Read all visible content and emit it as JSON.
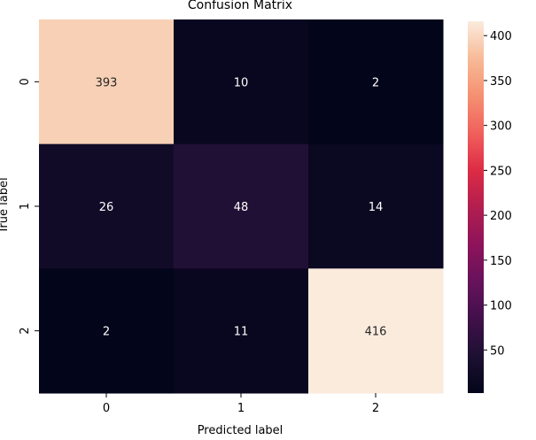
{
  "chart_data": {
    "type": "heatmap",
    "title": "Confusion Matrix",
    "xlabel": "Predicted label",
    "ylabel": "True label",
    "x_categories": [
      "0",
      "1",
      "2"
    ],
    "y_categories": [
      "0",
      "1",
      "2"
    ],
    "values": [
      [
        393,
        10,
        2
      ],
      [
        26,
        48,
        14
      ],
      [
        2,
        11,
        416
      ]
    ],
    "colorbar": {
      "min": 2,
      "max": 416,
      "ticks": [
        50,
        100,
        150,
        200,
        250,
        300,
        350,
        400
      ],
      "colormap": "rocket"
    },
    "annotations": true,
    "grid": false,
    "legend": "colorbar-right"
  }
}
